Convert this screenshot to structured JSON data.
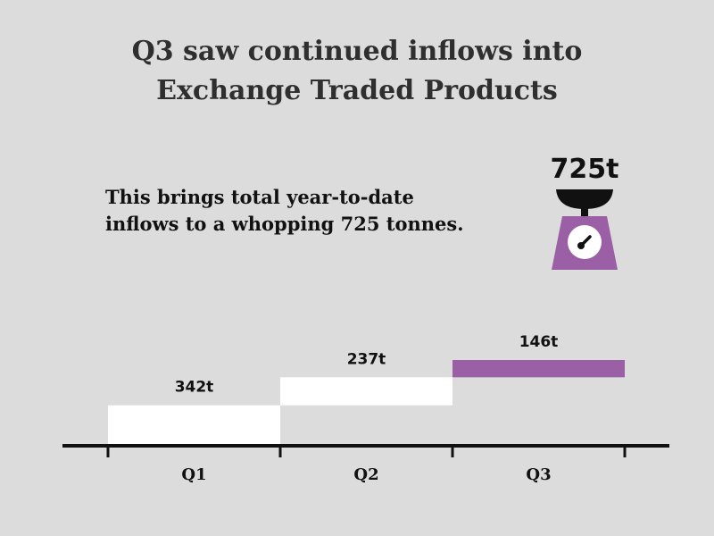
{
  "title": {
    "line1": "Q3 saw continued inflows into",
    "line2": "Exchange Traded Products"
  },
  "subtitle": {
    "line1": "This brings total year-to-date",
    "line2": "inflows to a whopping 725 tonnes."
  },
  "scale": {
    "label": "725t",
    "icon": "weighing-scale-icon",
    "body_color": "#9b5fa5",
    "pan_color": "#111111"
  },
  "chart_data": {
    "type": "bar",
    "subtype": "waterfall",
    "categories": [
      "Q1",
      "Q2",
      "Q3"
    ],
    "values": [
      342,
      237,
      146
    ],
    "value_labels": [
      "342t",
      "237t",
      "146t"
    ],
    "unit": "t",
    "total": 725,
    "ylim": [
      0,
      725
    ],
    "grid": false,
    "colors": {
      "default_bar": "#ffffff",
      "highlight_bar": "#9b5fa5",
      "axis": "#111111"
    },
    "highlight_index": 2
  }
}
